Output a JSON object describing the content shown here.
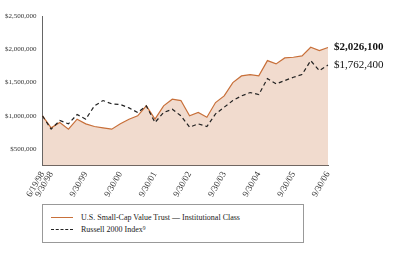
{
  "chart_data": {
    "type": "line",
    "categories": [
      "6/19/98",
      "9/30/98",
      null,
      null,
      null,
      "9/30/99",
      null,
      null,
      null,
      "9/30/00",
      null,
      null,
      null,
      "9/30/01",
      null,
      null,
      null,
      "9/30/02",
      null,
      null,
      null,
      "9/30/03",
      null,
      null,
      null,
      "9/30/04",
      null,
      null,
      null,
      "9/30/05",
      null,
      null,
      null,
      "9/30/06"
    ],
    "series": [
      {
        "name": "U.S. Small-Cap Value Trust — Institutional Class",
        "type": "area",
        "color": "#c8703a",
        "line_style": "solid",
        "marker": "none",
        "end_label": "$2,026,100",
        "values": [
          1000000,
          820000,
          900000,
          800000,
          950000,
          880000,
          840000,
          820000,
          800000,
          880000,
          950000,
          1000000,
          1150000,
          950000,
          1150000,
          1250000,
          1230000,
          1000000,
          1050000,
          980000,
          1200000,
          1300000,
          1500000,
          1600000,
          1620000,
          1600000,
          1830000,
          1780000,
          1870000,
          1880000,
          1900000,
          2030000,
          1980000,
          2026100
        ]
      },
      {
        "name": "Russell 2000 Index⁹",
        "type": "line",
        "color": "#222222",
        "line_style": "dashed",
        "marker": "none",
        "end_label": "$1,762,400",
        "values": [
          1000000,
          800000,
          930000,
          880000,
          1020000,
          950000,
          1150000,
          1230000,
          1180000,
          1170000,
          1120000,
          1050000,
          1150000,
          900000,
          1050000,
          1100000,
          1000000,
          830000,
          880000,
          840000,
          1030000,
          1130000,
          1230000,
          1300000,
          1350000,
          1320000,
          1560000,
          1480000,
          1530000,
          1580000,
          1620000,
          1830000,
          1680000,
          1762400
        ]
      }
    ],
    "ylim": [
      250000,
      2500000
    ],
    "yticks": [
      {
        "value": 500000,
        "label": "$500,000"
      },
      {
        "value": 1000000,
        "label": "$1,000,000"
      },
      {
        "value": 1500000,
        "label": "$1,500,000"
      },
      {
        "value": 2000000,
        "label": "$2,000,000"
      },
      {
        "value": 2500000,
        "label": "$2,500,000"
      }
    ],
    "grid": false,
    "legend": "bottom"
  }
}
